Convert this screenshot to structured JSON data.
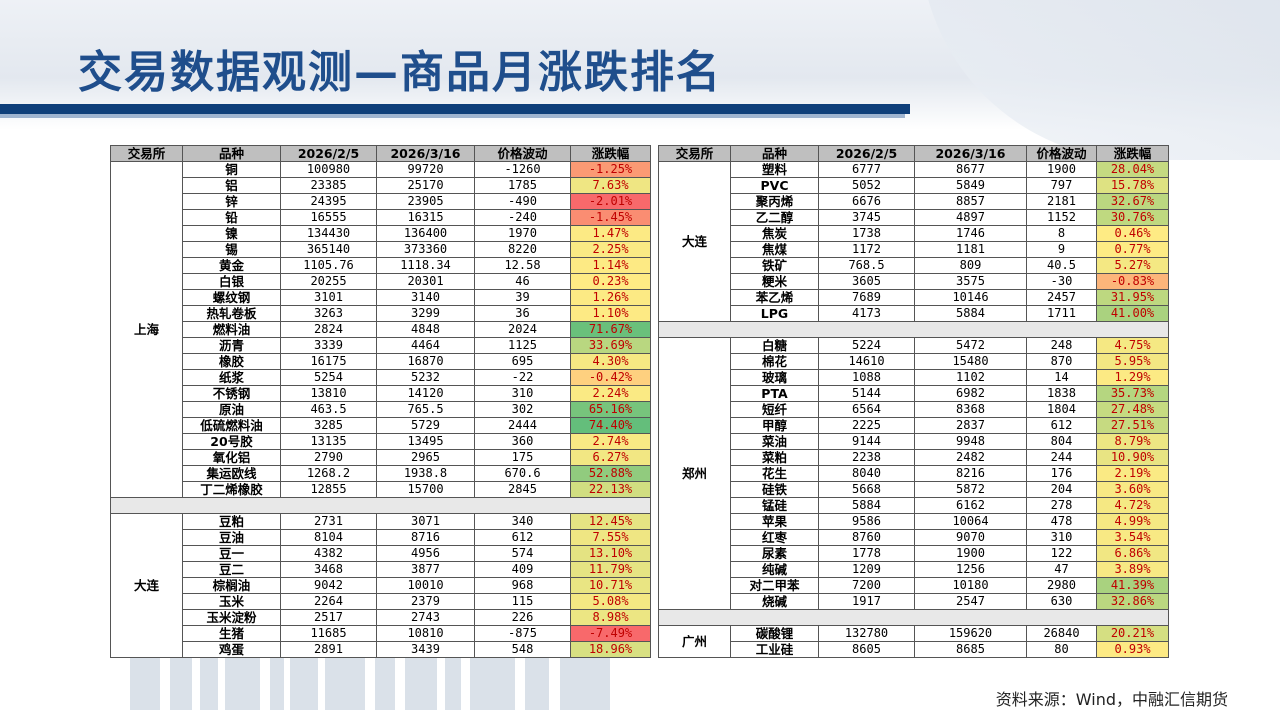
{
  "title": "交易数据观测—商品月涨跌排名",
  "source": "资料来源：Wind，中融汇信期货",
  "headers": [
    "交易所",
    "品种",
    "2026/2/5",
    "2026/3/16",
    "价格波动",
    "涨跌幅"
  ],
  "colors": {
    "header_bg": "#bfbfbf",
    "title": "#1f4e8c",
    "band": "#0f3f7a"
  },
  "left_groups": [
    {
      "exchange": "上海",
      "rows": [
        {
          "name": "铜",
          "v1": "100980",
          "v2": "99720",
          "chg": "-1260",
          "pct": "-1.25%",
          "pv": -1.25
        },
        {
          "name": "铝",
          "v1": "23385",
          "v2": "25170",
          "chg": "1785",
          "pct": "7.63%",
          "pv": 7.63
        },
        {
          "name": "锌",
          "v1": "24395",
          "v2": "23905",
          "chg": "-490",
          "pct": "-2.01%",
          "pv": -2.01
        },
        {
          "name": "铅",
          "v1": "16555",
          "v2": "16315",
          "chg": "-240",
          "pct": "-1.45%",
          "pv": -1.45
        },
        {
          "name": "镍",
          "v1": "134430",
          "v2": "136400",
          "chg": "1970",
          "pct": "1.47%",
          "pv": 1.47
        },
        {
          "name": "锡",
          "v1": "365140",
          "v2": "373360",
          "chg": "8220",
          "pct": "2.25%",
          "pv": 2.25
        },
        {
          "name": "黄金",
          "v1": "1105.76",
          "v2": "1118.34",
          "chg": "12.58",
          "pct": "1.14%",
          "pv": 1.14
        },
        {
          "name": "白银",
          "v1": "20255",
          "v2": "20301",
          "chg": "46",
          "pct": "0.23%",
          "pv": 0.23
        },
        {
          "name": "螺纹钢",
          "v1": "3101",
          "v2": "3140",
          "chg": "39",
          "pct": "1.26%",
          "pv": 1.26
        },
        {
          "name": "热轧卷板",
          "v1": "3263",
          "v2": "3299",
          "chg": "36",
          "pct": "1.10%",
          "pv": 1.1
        },
        {
          "name": "燃料油",
          "v1": "2824",
          "v2": "4848",
          "chg": "2024",
          "pct": "71.67%",
          "pv": 71.67
        },
        {
          "name": "沥青",
          "v1": "3339",
          "v2": "4464",
          "chg": "1125",
          "pct": "33.69%",
          "pv": 33.69
        },
        {
          "name": "橡胶",
          "v1": "16175",
          "v2": "16870",
          "chg": "695",
          "pct": "4.30%",
          "pv": 4.3
        },
        {
          "name": "纸浆",
          "v1": "5254",
          "v2": "5232",
          "chg": "-22",
          "pct": "-0.42%",
          "pv": -0.42
        },
        {
          "name": "不锈钢",
          "v1": "13810",
          "v2": "14120",
          "chg": "310",
          "pct": "2.24%",
          "pv": 2.24
        },
        {
          "name": "原油",
          "v1": "463.5",
          "v2": "765.5",
          "chg": "302",
          "pct": "65.16%",
          "pv": 65.16
        },
        {
          "name": "低硫燃料油",
          "v1": "3285",
          "v2": "5729",
          "chg": "2444",
          "pct": "74.40%",
          "pv": 74.4
        },
        {
          "name": "20号胶",
          "v1": "13135",
          "v2": "13495",
          "chg": "360",
          "pct": "2.74%",
          "pv": 2.74
        },
        {
          "name": "氧化铝",
          "v1": "2790",
          "v2": "2965",
          "chg": "175",
          "pct": "6.27%",
          "pv": 6.27
        },
        {
          "name": "集运欧线",
          "v1": "1268.2",
          "v2": "1938.8",
          "chg": "670.6",
          "pct": "52.88%",
          "pv": 52.88
        },
        {
          "name": "丁二烯橡胶",
          "v1": "12855",
          "v2": "15700",
          "chg": "2845",
          "pct": "22.13%",
          "pv": 22.13
        }
      ]
    },
    {
      "exchange": "大连",
      "rows": [
        {
          "name": "豆粕",
          "v1": "2731",
          "v2": "3071",
          "chg": "340",
          "pct": "12.45%",
          "pv": 12.45
        },
        {
          "name": "豆油",
          "v1": "8104",
          "v2": "8716",
          "chg": "612",
          "pct": "7.55%",
          "pv": 7.55
        },
        {
          "name": "豆一",
          "v1": "4382",
          "v2": "4956",
          "chg": "574",
          "pct": "13.10%",
          "pv": 13.1
        },
        {
          "name": "豆二",
          "v1": "3468",
          "v2": "3877",
          "chg": "409",
          "pct": "11.79%",
          "pv": 11.79
        },
        {
          "name": "棕榈油",
          "v1": "9042",
          "v2": "10010",
          "chg": "968",
          "pct": "10.71%",
          "pv": 10.71
        },
        {
          "name": "玉米",
          "v1": "2264",
          "v2": "2379",
          "chg": "115",
          "pct": "5.08%",
          "pv": 5.08
        },
        {
          "name": "玉米淀粉",
          "v1": "2517",
          "v2": "2743",
          "chg": "226",
          "pct": "8.98%",
          "pv": 8.98
        },
        {
          "name": "生猪",
          "v1": "11685",
          "v2": "10810",
          "chg": "-875",
          "pct": "-7.49%",
          "pv": -7.49
        },
        {
          "name": "鸡蛋",
          "v1": "2891",
          "v2": "3439",
          "chg": "548",
          "pct": "18.96%",
          "pv": 18.96
        }
      ]
    }
  ],
  "right_groups": [
    {
      "exchange": "大连",
      "rows": [
        {
          "name": "塑料",
          "v1": "6777",
          "v2": "8677",
          "chg": "1900",
          "pct": "28.04%",
          "pv": 28.04
        },
        {
          "name": "PVC",
          "v1": "5052",
          "v2": "5849",
          "chg": "797",
          "pct": "15.78%",
          "pv": 15.78
        },
        {
          "name": "聚丙烯",
          "v1": "6676",
          "v2": "8857",
          "chg": "2181",
          "pct": "32.67%",
          "pv": 32.67
        },
        {
          "name": "乙二醇",
          "v1": "3745",
          "v2": "4897",
          "chg": "1152",
          "pct": "30.76%",
          "pv": 30.76
        },
        {
          "name": "焦炭",
          "v1": "1738",
          "v2": "1746",
          "chg": "8",
          "pct": "0.46%",
          "pv": 0.46
        },
        {
          "name": "焦煤",
          "v1": "1172",
          "v2": "1181",
          "chg": "9",
          "pct": "0.77%",
          "pv": 0.77
        },
        {
          "name": "铁矿",
          "v1": "768.5",
          "v2": "809",
          "chg": "40.5",
          "pct": "5.27%",
          "pv": 5.27
        },
        {
          "name": "粳米",
          "v1": "3605",
          "v2": "3575",
          "chg": "-30",
          "pct": "-0.83%",
          "pv": -0.83
        },
        {
          "name": "苯乙烯",
          "v1": "7689",
          "v2": "10146",
          "chg": "2457",
          "pct": "31.95%",
          "pv": 31.95
        },
        {
          "name": "LPG",
          "v1": "4173",
          "v2": "5884",
          "chg": "1711",
          "pct": "41.00%",
          "pv": 41.0
        }
      ]
    },
    {
      "exchange": "郑州",
      "rows": [
        {
          "name": "白糖",
          "v1": "5224",
          "v2": "5472",
          "chg": "248",
          "pct": "4.75%",
          "pv": 4.75
        },
        {
          "name": "棉花",
          "v1": "14610",
          "v2": "15480",
          "chg": "870",
          "pct": "5.95%",
          "pv": 5.95
        },
        {
          "name": "玻璃",
          "v1": "1088",
          "v2": "1102",
          "chg": "14",
          "pct": "1.29%",
          "pv": 1.29
        },
        {
          "name": "PTA",
          "v1": "5144",
          "v2": "6982",
          "chg": "1838",
          "pct": "35.73%",
          "pv": 35.73
        },
        {
          "name": "短纤",
          "v1": "6564",
          "v2": "8368",
          "chg": "1804",
          "pct": "27.48%",
          "pv": 27.48
        },
        {
          "name": "甲醇",
          "v1": "2225",
          "v2": "2837",
          "chg": "612",
          "pct": "27.51%",
          "pv": 27.51
        },
        {
          "name": "菜油",
          "v1": "9144",
          "v2": "9948",
          "chg": "804",
          "pct": "8.79%",
          "pv": 8.79
        },
        {
          "name": "菜粕",
          "v1": "2238",
          "v2": "2482",
          "chg": "244",
          "pct": "10.90%",
          "pv": 10.9
        },
        {
          "name": "花生",
          "v1": "8040",
          "v2": "8216",
          "chg": "176",
          "pct": "2.19%",
          "pv": 2.19
        },
        {
          "name": "硅铁",
          "v1": "5668",
          "v2": "5872",
          "chg": "204",
          "pct": "3.60%",
          "pv": 3.6
        },
        {
          "name": "锰硅",
          "v1": "5884",
          "v2": "6162",
          "chg": "278",
          "pct": "4.72%",
          "pv": 4.72
        },
        {
          "name": "苹果",
          "v1": "9586",
          "v2": "10064",
          "chg": "478",
          "pct": "4.99%",
          "pv": 4.99
        },
        {
          "name": "红枣",
          "v1": "8760",
          "v2": "9070",
          "chg": "310",
          "pct": "3.54%",
          "pv": 3.54
        },
        {
          "name": "尿素",
          "v1": "1778",
          "v2": "1900",
          "chg": "122",
          "pct": "6.86%",
          "pv": 6.86
        },
        {
          "name": "纯碱",
          "v1": "1209",
          "v2": "1256",
          "chg": "47",
          "pct": "3.89%",
          "pv": 3.89
        },
        {
          "name": "对二甲苯",
          "v1": "7200",
          "v2": "10180",
          "chg": "2980",
          "pct": "41.39%",
          "pv": 41.39
        },
        {
          "name": "烧碱",
          "v1": "1917",
          "v2": "2547",
          "chg": "630",
          "pct": "32.86%",
          "pv": 32.86
        }
      ]
    },
    {
      "exchange": "广州",
      "rows": [
        {
          "name": "碳酸锂",
          "v1": "132780",
          "v2": "159620",
          "chg": "26840",
          "pct": "20.21%",
          "pv": 20.21
        },
        {
          "name": "工业硅",
          "v1": "8605",
          "v2": "8685",
          "chg": "80",
          "pct": "0.93%",
          "pv": 0.93
        }
      ]
    }
  ]
}
